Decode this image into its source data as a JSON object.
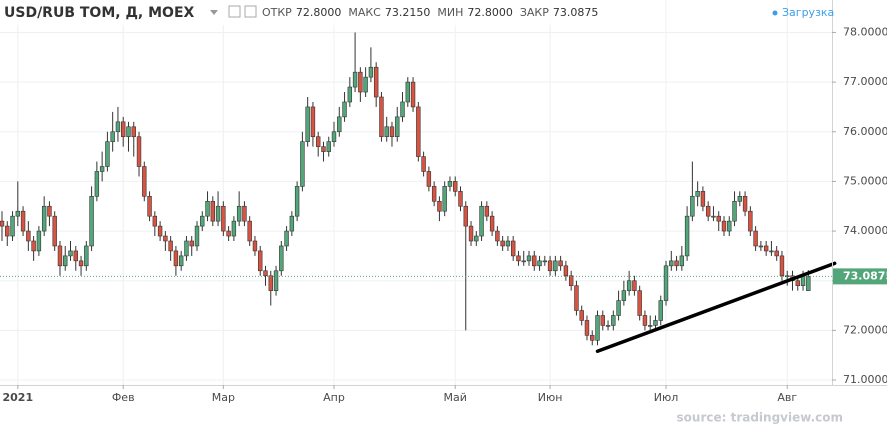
{
  "header": {
    "symbol": "USD/RUB TOM, Д, MOEX",
    "fields": [
      {
        "label": "ОТКР",
        "value": "72.8000"
      },
      {
        "label": "МАКС",
        "value": "73.2150"
      },
      {
        "label": "МИН",
        "value": "72.8000"
      },
      {
        "label": "ЗАКР",
        "value": "73.0875"
      }
    ],
    "status": "Загрузка"
  },
  "source": "source: tradingview.com",
  "chart_data": {
    "type": "candlestick",
    "up_color": "#53a57a",
    "down_color": "#d75442",
    "grid": true,
    "ylim": [
      70.9,
      78.15
    ],
    "yticks": [
      {
        "value": 71,
        "label": "71.0000"
      },
      {
        "value": 72,
        "label": "72.0000"
      },
      {
        "value": 73,
        "label": "73.0000"
      },
      {
        "value": 74,
        "label": "74.0000"
      },
      {
        "value": 75,
        "label": "75.0000"
      },
      {
        "value": 76,
        "label": "76.0000"
      },
      {
        "value": 77,
        "label": "77.0000"
      },
      {
        "value": 78,
        "label": "78.0000"
      }
    ],
    "categories": [
      null,
      null,
      null,
      "2021",
      null,
      null,
      null,
      null,
      null,
      null,
      null,
      null,
      null,
      null,
      null,
      null,
      null,
      null,
      null,
      null,
      null,
      null,
      null,
      "Фев",
      null,
      null,
      null,
      null,
      null,
      null,
      null,
      null,
      null,
      null,
      null,
      null,
      null,
      null,
      null,
      null,
      null,
      null,
      "Мар",
      null,
      null,
      null,
      null,
      null,
      null,
      null,
      null,
      null,
      null,
      null,
      null,
      null,
      null,
      null,
      null,
      null,
      null,
      null,
      null,
      "Апр",
      null,
      null,
      null,
      null,
      null,
      null,
      null,
      null,
      null,
      null,
      null,
      null,
      null,
      null,
      null,
      null,
      null,
      null,
      null,
      null,
      null,
      null,
      "Май",
      null,
      null,
      null,
      null,
      null,
      null,
      null,
      null,
      null,
      null,
      null,
      null,
      null,
      null,
      null,
      null,
      null,
      "Июн",
      null,
      null,
      null,
      null,
      null,
      null,
      null,
      null,
      null,
      null,
      null,
      null,
      null,
      null,
      null,
      null,
      null,
      null,
      null,
      null,
      null,
      "Июл",
      null,
      null,
      null,
      null,
      null,
      null,
      null,
      null,
      null,
      null,
      null,
      null,
      null,
      null,
      null,
      null,
      null,
      null,
      null,
      null,
      null,
      null,
      "Авг",
      null,
      null,
      null,
      null
    ],
    "ohlc": [
      [
        74.2,
        74.4,
        73.8,
        74.1
      ],
      [
        74.1,
        74.2,
        73.7,
        73.9
      ],
      [
        73.9,
        74.4,
        73.8,
        74.3
      ],
      [
        74.3,
        75.0,
        74.1,
        74.4
      ],
      [
        74.4,
        74.5,
        73.9,
        74.0
      ],
      [
        74.0,
        74.2,
        73.6,
        73.8
      ],
      [
        73.8,
        73.9,
        73.4,
        73.6
      ],
      [
        73.6,
        74.1,
        73.5,
        74.0
      ],
      [
        74.0,
        74.7,
        73.9,
        74.5
      ],
      [
        74.5,
        74.6,
        74.1,
        74.3
      ],
      [
        74.3,
        74.4,
        73.6,
        73.7
      ],
      [
        73.7,
        73.8,
        73.1,
        73.3
      ],
      [
        73.3,
        73.7,
        73.2,
        73.5
      ],
      [
        73.5,
        73.8,
        73.4,
        73.6
      ],
      [
        73.6,
        73.7,
        73.2,
        73.4
      ],
      [
        73.4,
        73.5,
        73.1,
        73.3
      ],
      [
        73.3,
        73.8,
        73.2,
        73.7
      ],
      [
        73.7,
        74.9,
        73.6,
        74.7
      ],
      [
        74.7,
        75.4,
        74.6,
        75.2
      ],
      [
        75.2,
        75.6,
        75.0,
        75.3
      ],
      [
        75.3,
        76.0,
        75.2,
        75.8
      ],
      [
        75.8,
        76.4,
        75.6,
        76.0
      ],
      [
        76.0,
        76.5,
        75.8,
        76.2
      ],
      [
        76.2,
        76.3,
        75.7,
        75.9
      ],
      [
        75.9,
        76.2,
        75.6,
        76.1
      ],
      [
        76.1,
        76.2,
        75.5,
        75.9
      ],
      [
        75.9,
        76.0,
        75.1,
        75.3
      ],
      [
        75.3,
        75.4,
        74.6,
        74.7
      ],
      [
        74.7,
        74.8,
        74.2,
        74.3
      ],
      [
        74.3,
        74.4,
        73.9,
        74.1
      ],
      [
        74.1,
        74.2,
        73.8,
        73.9
      ],
      [
        73.9,
        74.0,
        73.6,
        73.8
      ],
      [
        73.8,
        73.9,
        73.4,
        73.6
      ],
      [
        73.6,
        73.7,
        73.1,
        73.3
      ],
      [
        73.3,
        73.6,
        73.2,
        73.5
      ],
      [
        73.5,
        73.9,
        73.4,
        73.8
      ],
      [
        73.8,
        73.9,
        73.5,
        73.7
      ],
      [
        73.7,
        74.2,
        73.6,
        74.1
      ],
      [
        74.1,
        74.4,
        74.0,
        74.3
      ],
      [
        74.3,
        74.8,
        74.2,
        74.6
      ],
      [
        74.6,
        74.7,
        74.1,
        74.2
      ],
      [
        74.2,
        74.8,
        74.1,
        74.5
      ],
      [
        74.5,
        74.6,
        73.9,
        74.0
      ],
      [
        74.0,
        74.1,
        73.8,
        73.9
      ],
      [
        73.9,
        74.3,
        73.8,
        74.2
      ],
      [
        74.2,
        74.8,
        74.1,
        74.5
      ],
      [
        74.5,
        74.6,
        74.1,
        74.2
      ],
      [
        74.2,
        74.3,
        73.7,
        73.8
      ],
      [
        73.8,
        73.9,
        73.5,
        73.6
      ],
      [
        73.6,
        73.7,
        73.1,
        73.2
      ],
      [
        73.2,
        73.3,
        72.9,
        73.1
      ],
      [
        73.1,
        73.2,
        72.5,
        72.8
      ],
      [
        72.8,
        73.3,
        72.7,
        73.2
      ],
      [
        73.2,
        73.8,
        73.1,
        73.7
      ],
      [
        73.7,
        74.1,
        73.6,
        74.0
      ],
      [
        74.0,
        74.4,
        73.9,
        74.3
      ],
      [
        74.3,
        75.0,
        74.2,
        74.9
      ],
      [
        74.9,
        76.0,
        74.8,
        75.8
      ],
      [
        75.8,
        76.7,
        75.7,
        76.5
      ],
      [
        76.5,
        76.6,
        75.7,
        75.9
      ],
      [
        75.9,
        76.0,
        75.5,
        75.7
      ],
      [
        75.7,
        75.8,
        75.4,
        75.6
      ],
      [
        75.6,
        75.9,
        75.5,
        75.8
      ],
      [
        75.8,
        76.2,
        75.7,
        76.0
      ],
      [
        76.0,
        76.5,
        75.9,
        76.3
      ],
      [
        76.3,
        76.8,
        76.2,
        76.6
      ],
      [
        76.6,
        77.1,
        76.5,
        76.9
      ],
      [
        76.9,
        78.0,
        76.8,
        77.2
      ],
      [
        77.2,
        77.3,
        76.6,
        76.8
      ],
      [
        76.8,
        77.3,
        76.7,
        77.1
      ],
      [
        77.1,
        77.7,
        77.0,
        77.3
      ],
      [
        77.3,
        77.4,
        76.5,
        76.7
      ],
      [
        76.7,
        76.8,
        75.8,
        75.9
      ],
      [
        75.9,
        76.3,
        75.8,
        76.1
      ],
      [
        76.1,
        76.2,
        75.7,
        75.9
      ],
      [
        75.9,
        76.5,
        75.8,
        76.3
      ],
      [
        76.3,
        76.8,
        76.2,
        76.6
      ],
      [
        76.6,
        77.1,
        76.5,
        77.0
      ],
      [
        77.0,
        77.1,
        76.4,
        76.5
      ],
      [
        76.5,
        76.6,
        75.4,
        75.5
      ],
      [
        75.5,
        75.6,
        75.1,
        75.2
      ],
      [
        75.2,
        75.3,
        74.8,
        74.9
      ],
      [
        74.9,
        75.0,
        74.5,
        74.6
      ],
      [
        74.6,
        74.7,
        74.2,
        74.4
      ],
      [
        74.4,
        75.0,
        74.3,
        74.9
      ],
      [
        74.9,
        75.1,
        74.8,
        75.0
      ],
      [
        75.0,
        75.1,
        74.7,
        74.8
      ],
      [
        74.8,
        74.9,
        74.4,
        74.5
      ],
      [
        74.5,
        74.6,
        72.0,
        74.1
      ],
      [
        74.1,
        74.2,
        73.7,
        73.8
      ],
      [
        73.8,
        74.0,
        73.7,
        73.9
      ],
      [
        73.9,
        74.6,
        73.8,
        74.5
      ],
      [
        74.5,
        74.6,
        74.2,
        74.3
      ],
      [
        74.3,
        74.4,
        73.9,
        74.0
      ],
      [
        74.0,
        74.1,
        73.7,
        73.8
      ],
      [
        73.8,
        73.9,
        73.6,
        73.7
      ],
      [
        73.7,
        73.9,
        73.6,
        73.8
      ],
      [
        73.8,
        73.9,
        73.4,
        73.5
      ],
      [
        73.5,
        73.6,
        73.3,
        73.4
      ],
      [
        73.4,
        73.6,
        73.3,
        73.4
      ],
      [
        73.4,
        73.6,
        73.3,
        73.5
      ],
      [
        73.5,
        73.6,
        73.2,
        73.3
      ],
      [
        73.3,
        73.5,
        73.2,
        73.4
      ],
      [
        73.4,
        73.5,
        73.3,
        73.4
      ],
      [
        73.4,
        73.5,
        73.1,
        73.2
      ],
      [
        73.2,
        73.5,
        73.1,
        73.4
      ],
      [
        73.4,
        73.5,
        73.2,
        73.3
      ],
      [
        73.3,
        73.4,
        73.0,
        73.1
      ],
      [
        73.1,
        73.2,
        72.8,
        72.9
      ],
      [
        72.9,
        73.0,
        72.3,
        72.4
      ],
      [
        72.4,
        72.5,
        72.1,
        72.2
      ],
      [
        72.2,
        72.3,
        71.8,
        71.9
      ],
      [
        71.9,
        72.0,
        71.7,
        71.8
      ],
      [
        71.8,
        72.4,
        71.7,
        72.3
      ],
      [
        72.3,
        72.4,
        72.0,
        72.1
      ],
      [
        72.1,
        72.2,
        72.0,
        72.1
      ],
      [
        72.1,
        72.4,
        72.0,
        72.3
      ],
      [
        72.3,
        72.8,
        72.2,
        72.6
      ],
      [
        72.6,
        73.0,
        72.5,
        72.8
      ],
      [
        72.8,
        73.2,
        72.7,
        73.0
      ],
      [
        73.0,
        73.1,
        72.7,
        72.8
      ],
      [
        72.8,
        72.9,
        72.2,
        72.3
      ],
      [
        72.3,
        72.4,
        72.0,
        72.1
      ],
      [
        72.1,
        72.3,
        72.0,
        72.1
      ],
      [
        72.1,
        72.3,
        72.0,
        72.2
      ],
      [
        72.2,
        72.7,
        72.1,
        72.6
      ],
      [
        72.6,
        73.4,
        72.5,
        73.3
      ],
      [
        73.3,
        73.6,
        73.2,
        73.4
      ],
      [
        73.4,
        73.5,
        73.2,
        73.3
      ],
      [
        73.3,
        73.7,
        73.2,
        73.5
      ],
      [
        73.5,
        74.5,
        73.4,
        74.3
      ],
      [
        74.3,
        75.4,
        74.2,
        74.7
      ],
      [
        74.7,
        75.0,
        74.5,
        74.8
      ],
      [
        74.8,
        74.9,
        74.4,
        74.5
      ],
      [
        74.5,
        74.6,
        74.2,
        74.3
      ],
      [
        74.3,
        74.5,
        74.2,
        74.3
      ],
      [
        74.3,
        74.4,
        74.0,
        74.2
      ],
      [
        74.2,
        74.3,
        73.9,
        74.0
      ],
      [
        74.0,
        74.3,
        73.9,
        74.2
      ],
      [
        74.2,
        74.8,
        74.1,
        74.6
      ],
      [
        74.6,
        74.8,
        74.5,
        74.7
      ],
      [
        74.7,
        74.8,
        74.3,
        74.4
      ],
      [
        74.4,
        74.5,
        73.9,
        74.0
      ],
      [
        74.0,
        74.1,
        73.6,
        73.7
      ],
      [
        73.7,
        73.8,
        73.6,
        73.7
      ],
      [
        73.7,
        73.8,
        73.5,
        73.6
      ],
      [
        73.6,
        73.8,
        73.5,
        73.6
      ],
      [
        73.6,
        73.7,
        73.4,
        73.5
      ],
      [
        73.5,
        73.6,
        73.0,
        73.1
      ],
      [
        73.1,
        73.2,
        72.9,
        73.1
      ],
      [
        73.1,
        73.2,
        72.8,
        73.0
      ],
      [
        73.0,
        73.1,
        72.8,
        72.9
      ],
      [
        72.9,
        73.2,
        72.8,
        73.1
      ],
      [
        72.8,
        73.215,
        72.8,
        73.0875
      ]
    ],
    "trendline": {
      "x": [
        113,
        158
      ],
      "y": [
        71.58,
        73.35
      ],
      "color": "#000000"
    }
  }
}
